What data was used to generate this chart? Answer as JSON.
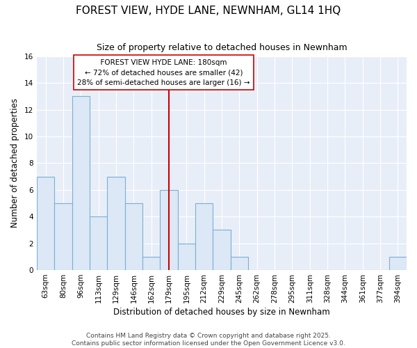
{
  "title": "FOREST VIEW, HYDE LANE, NEWNHAM, GL14 1HQ",
  "subtitle": "Size of property relative to detached houses in Newnham",
  "xlabel": "Distribution of detached houses by size in Newnham",
  "ylabel": "Number of detached properties",
  "categories": [
    "63sqm",
    "80sqm",
    "96sqm",
    "113sqm",
    "129sqm",
    "146sqm",
    "162sqm",
    "179sqm",
    "195sqm",
    "212sqm",
    "229sqm",
    "245sqm",
    "262sqm",
    "278sqm",
    "295sqm",
    "311sqm",
    "328sqm",
    "344sqm",
    "361sqm",
    "377sqm",
    "394sqm"
  ],
  "values": [
    7,
    5,
    13,
    4,
    7,
    5,
    1,
    6,
    2,
    5,
    3,
    1,
    0,
    0,
    0,
    0,
    0,
    0,
    0,
    0,
    1
  ],
  "highlight_index": 7,
  "highlight_label": "FOREST VIEW HYDE LANE: 180sqm",
  "smaller_pct": "72% of detached houses are smaller (42)",
  "larger_pct": "28% of semi-detached houses are larger (16)",
  "bar_color": "#dce8f5",
  "bar_edge_color": "#7aaed6",
  "highlight_line_color": "#cc0000",
  "annotation_box_edge": "#cc0000",
  "plot_bg_color": "#e8eef8",
  "figure_bg_color": "#ffffff",
  "grid_color": "#ffffff",
  "ylim": [
    0,
    16
  ],
  "yticks": [
    0,
    2,
    4,
    6,
    8,
    10,
    12,
    14,
    16
  ],
  "footer": "Contains HM Land Registry data © Crown copyright and database right 2025.\nContains public sector information licensed under the Open Government Licence v3.0.",
  "title_fontsize": 11,
  "subtitle_fontsize": 9,
  "axis_label_fontsize": 8.5,
  "tick_fontsize": 7.5,
  "annotation_fontsize": 7.5
}
